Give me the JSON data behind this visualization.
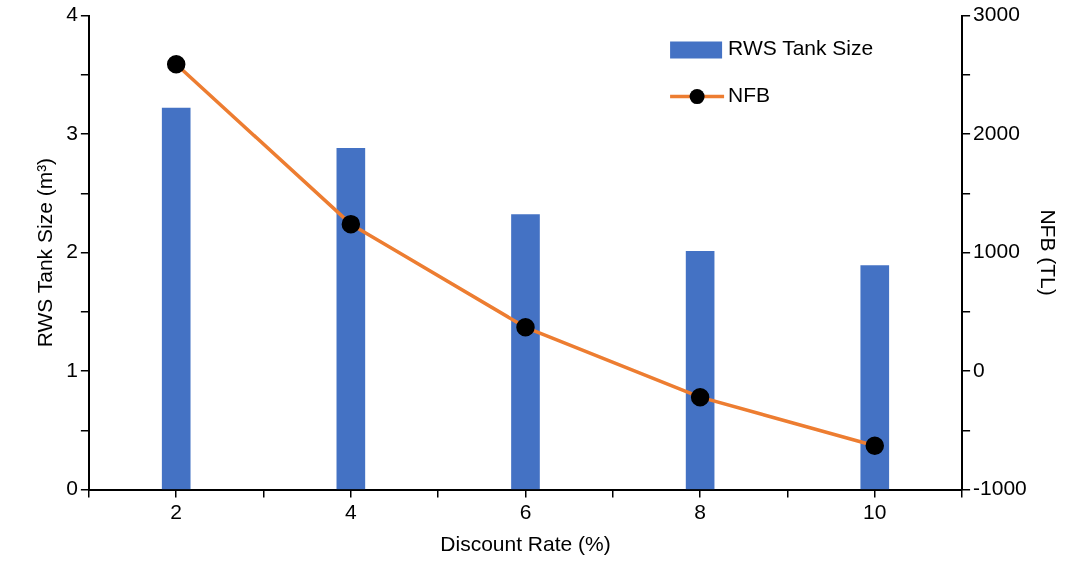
{
  "chart_data": {
    "type": "bar",
    "xlabel": "Discount Rate (%)",
    "ylabel": "RWS Tank Size (m³)",
    "y2label": "NFB (TL)",
    "x": [
      2,
      4,
      6,
      8,
      10
    ],
    "xlim": [
      1,
      11
    ],
    "xticks": [
      {
        "value": 1,
        "label": null
      },
      2,
      {
        "value": 3,
        "label": null
      },
      4,
      {
        "value": 5,
        "label": null
      },
      6,
      {
        "value": 7,
        "label": null
      },
      8,
      {
        "value": 9,
        "label": null
      },
      10,
      {
        "value": 11,
        "label": null
      }
    ],
    "ylim": [
      0,
      4
    ],
    "yticks": [
      0,
      {
        "value": 0.5,
        "label": null
      },
      1,
      {
        "value": 1.5,
        "label": null
      },
      2,
      {
        "value": 2.5,
        "label": null
      },
      3,
      {
        "value": 3.5,
        "label": null
      },
      4
    ],
    "y2lim": [
      -1000,
      3000
    ],
    "y2ticks": [
      -1000,
      {
        "value": -500,
        "label": null
      },
      0,
      {
        "value": 500,
        "label": null
      },
      1000,
      {
        "value": 1500,
        "label": null
      },
      2000,
      {
        "value": 2500,
        "label": null
      },
      3000
    ],
    "series": [
      {
        "name": "RWS Tank Size",
        "color": "#4472c4",
        "values": [
          3.22,
          2.88,
          2.32,
          2.01,
          1.89
        ]
      },
      {
        "name": "NFB",
        "type": "line",
        "axis": "y2",
        "color": "#ed7d31",
        "marker": "circle",
        "values": [
          2590,
          1240,
          370,
          -220,
          -630
        ]
      }
    ],
    "legend": "top right",
    "grid": false
  }
}
